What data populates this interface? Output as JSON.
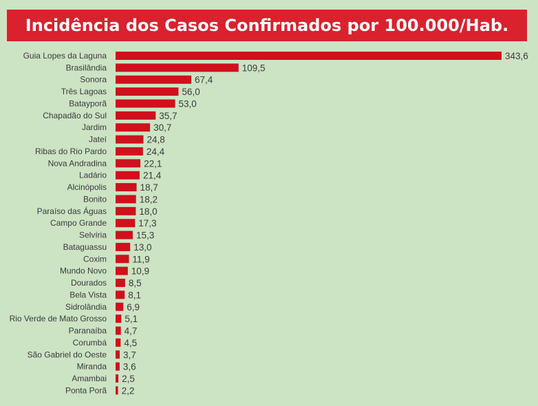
{
  "colors": {
    "background": "#cce3c4",
    "title_bar": "#d9222e",
    "bar": "#d0101c",
    "text": "#3a3a3a"
  },
  "chart_data": {
    "type": "bar",
    "orientation": "horizontal",
    "title": "Incidência dos Casos Confirmados por 100.000/Hab.",
    "xlabel": "",
    "ylabel": "",
    "xlim": [
      0,
      343.6
    ],
    "grid": false,
    "legend": "none",
    "categories": [
      "Guia Lopes da Laguna",
      "Brasilândia",
      "Sonora",
      "Três Lagoas",
      "Batayporã",
      "Chapadão do Sul",
      "Jardim",
      "Jateí",
      "Ribas do Rio Pardo",
      "Nova Andradina",
      "Ladário",
      "Alcinópolis",
      "Bonito",
      "Paraíso das Águas",
      "Campo Grande",
      "Selvíria",
      "Bataguassu",
      "Coxim",
      "Mundo Novo",
      "Dourados",
      "Bela Vista",
      "Sidrolândia",
      "Rio Verde de Mato Grosso",
      "Paranaíba",
      "Corumbá",
      "São Gabriel do Oeste",
      "Miranda",
      "Amambai",
      "Ponta Porã"
    ],
    "values": [
      343.6,
      109.5,
      67.4,
      56.0,
      53.0,
      35.7,
      30.7,
      24.8,
      24.4,
      22.1,
      21.4,
      18.7,
      18.2,
      18.0,
      17.3,
      15.3,
      13.0,
      11.9,
      10.9,
      8.5,
      8.1,
      6.9,
      5.1,
      4.7,
      4.5,
      3.7,
      3.6,
      2.5,
      2.2
    ],
    "value_labels": [
      "343,6",
      "109,5",
      "67,4",
      "56,0",
      "53,0",
      "35,7",
      "30,7",
      "24,8",
      "24,4",
      "22,1",
      "21,4",
      "18,7",
      "18,2",
      "18,0",
      "17,3",
      "15,3",
      "13,0",
      "11,9",
      "10,9",
      "8,5",
      "8,1",
      "6,9",
      "5,1",
      "4,7",
      "4,5",
      "3,7",
      "3,6",
      "2,5",
      "2,2"
    ]
  }
}
